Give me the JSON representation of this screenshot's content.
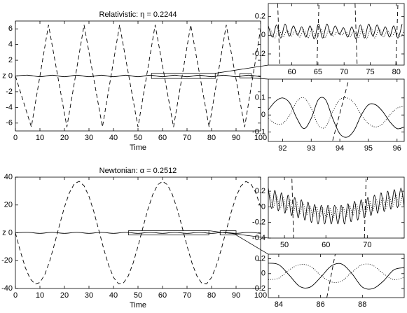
{
  "chart_data": [
    {
      "type": "line",
      "title": "Relativistic: η = 0.2244",
      "xlabel": "Time",
      "ylabel": "z",
      "xlim": [
        0,
        100
      ],
      "ylim": [
        -7,
        7
      ],
      "xticks": [
        0,
        10,
        20,
        30,
        40,
        50,
        60,
        70,
        80,
        90,
        100
      ],
      "yticks": [
        -6,
        -4,
        -2,
        0,
        2,
        4,
        6
      ],
      "series": [
        {
          "style": "dashed",
          "color": "#000000",
          "x": [
            0,
            6.5,
            13.5,
            21,
            28,
            35.5,
            42.5,
            50,
            57,
            64.5,
            71.5,
            79,
            86,
            93.5,
            100
          ],
          "values": [
            0,
            -6.5,
            6.5,
            -6.5,
            6.5,
            -6.5,
            6.5,
            -6.5,
            6.5,
            -6.5,
            6.5,
            -6.5,
            6.5,
            -6.5,
            6
          ]
        },
        {
          "style": "solid",
          "color": "#000000",
          "x": [
            0,
            5,
            10,
            15,
            20,
            25,
            30,
            35,
            40,
            45,
            50,
            55,
            60,
            65,
            70,
            75,
            80,
            85,
            90,
            95,
            100
          ],
          "values": [
            0,
            0.1,
            -0.1,
            0.1,
            -0.1,
            0.1,
            -0.1,
            0.1,
            -0.1,
            0.1,
            -0.1,
            0.1,
            -0.1,
            0.1,
            -0.1,
            0.1,
            -0.1,
            0.1,
            -0.1,
            0.1,
            -0.1
          ]
        }
      ]
    },
    {
      "type": "line",
      "xlim": [
        55.5,
        81.5
      ],
      "ylim": [
        -0.32,
        0.34
      ],
      "xticks": [
        60,
        65,
        70,
        75,
        80
      ],
      "yticks": [
        -0.2,
        0,
        0.2
      ],
      "series": [
        {
          "style": "solid",
          "color": "#000000",
          "x": [
            55.5,
            56.3,
            57.1,
            57.9,
            58.7,
            59.5,
            60.3,
            61.1,
            61.9,
            62.7,
            63.5,
            64.3,
            65.1,
            65.9,
            66.7,
            67.5,
            68.3,
            69.1,
            69.9,
            70.7,
            71.5,
            72.3,
            73.1,
            73.9,
            74.7,
            75.5,
            76.3,
            77.1,
            77.9,
            78.7,
            79.5,
            80.3,
            81.1
          ],
          "values": [
            0.1,
            -0.02,
            0.11,
            -0.03,
            0.12,
            -0.01,
            0.1,
            0,
            0.09,
            -0.02,
            0.1,
            -0.04,
            0.12,
            -0.03,
            0.12,
            0,
            0.1,
            0.01,
            0.08,
            -0.02,
            0.09,
            -0.04,
            0.11,
            -0.03,
            0.12,
            -0.01,
            0.11,
            0,
            0.09,
            -0.02,
            0.1,
            -0.03,
            0.12
          ]
        },
        {
          "style": "dotted",
          "color": "#000000",
          "x": [
            55.9,
            56.7,
            57.5,
            58.3,
            59.1,
            59.9,
            60.7,
            61.5,
            62.3,
            63.1,
            63.9,
            64.7,
            65.5,
            66.3,
            67.1,
            67.9,
            68.7,
            69.5,
            70.3,
            71.1,
            71.9,
            72.7,
            73.5,
            74.3,
            75.1,
            75.9,
            76.7,
            77.5,
            78.3,
            79.1,
            79.9,
            80.7,
            81.5
          ],
          "values": [
            0.07,
            -0.03,
            0.06,
            -0.02,
            0.05,
            -0.01,
            0.05,
            -0.02,
            0.06,
            -0.03,
            0.07,
            -0.04,
            0.07,
            -0.03,
            0.06,
            -0.01,
            0.04,
            0,
            0.04,
            -0.02,
            0.05,
            -0.03,
            0.07,
            -0.04,
            0.08,
            -0.03,
            0.07,
            -0.02,
            0.05,
            -0.01,
            0.04,
            -0.02,
            0.05
          ]
        },
        {
          "style": "dashed",
          "color": "#000000",
          "x": [
            57.3,
            57.7,
            null,
            64.8,
            65.2,
            null,
            72.1,
            72.5,
            null,
            79.9,
            80.3
          ],
          "values": [
            0.34,
            -0.32,
            null,
            -0.32,
            0.34,
            null,
            0.34,
            -0.32,
            null,
            -0.32,
            0.34
          ]
        }
      ]
    },
    {
      "type": "line",
      "xlim": [
        91.5,
        96.25
      ],
      "ylim": [
        -0.155,
        0.21
      ],
      "xticks": [
        92,
        93,
        94,
        95,
        96
      ],
      "yticks": [
        -0.1,
        0,
        0.1
      ],
      "series": [
        {
          "style": "solid",
          "color": "#000000",
          "x": [
            91.5,
            91.75,
            92,
            92.25,
            92.5,
            92.75,
            93,
            93.25,
            93.5,
            93.75,
            94,
            94.25,
            94.5,
            94.75,
            95,
            95.25,
            95.5,
            95.75,
            96,
            96.25
          ],
          "values": [
            0.03,
            0.08,
            0.1,
            0.07,
            -0.02,
            -0.08,
            -0.02,
            0.09,
            0.09,
            -0.02,
            -0.11,
            -0.13,
            -0.09,
            0,
            0.06,
            0.06,
            0.02,
            -0.04,
            -0.08,
            -0.07
          ]
        },
        {
          "style": "dotted",
          "color": "#000000",
          "x": [
            91.5,
            91.75,
            92,
            92.25,
            92.5,
            92.75,
            93,
            93.25,
            93.5,
            93.75,
            94,
            94.25,
            94.5,
            94.75,
            95,
            95.25,
            95.5,
            95.75,
            96,
            96.25
          ],
          "values": [
            -0.02,
            -0.05,
            -0.05,
            0,
            0.08,
            0.1,
            0.04,
            -0.06,
            -0.07,
            0.02,
            0.09,
            0.1,
            0.07,
            0,
            -0.05,
            -0.07,
            -0.05,
            0,
            0.04,
            0.05
          ]
        },
        {
          "style": "dashed",
          "color": "#000000",
          "x": [
            93.75,
            94.3
          ],
          "values": [
            -0.15,
            0.2
          ]
        }
      ]
    },
    {
      "type": "line",
      "title": "Newtonian: α = 0.2512",
      "xlabel": "Time",
      "ylabel": "z",
      "xlim": [
        0,
        100
      ],
      "ylim": [
        -40,
        40
      ],
      "xticks": [
        0,
        10,
        20,
        30,
        40,
        50,
        60,
        70,
        80,
        90,
        100
      ],
      "yticks": [
        -40,
        -20,
        0,
        20,
        40
      ],
      "series": [
        {
          "style": "dashed",
          "color": "#000000",
          "x": [
            0,
            2,
            4,
            6,
            8,
            10,
            12,
            14,
            16,
            18,
            20,
            22,
            24,
            26,
            28,
            30,
            32,
            34,
            36,
            38,
            40,
            42,
            44,
            46,
            48,
            50,
            52,
            54,
            56,
            58,
            60,
            62,
            64,
            66,
            68,
            70,
            72,
            74,
            76,
            78,
            80,
            82,
            84,
            86,
            88,
            90,
            92,
            94,
            96,
            98,
            100
          ],
          "values": [
            0,
            -13.2,
            -24.8,
            -33.0,
            -36.8,
            -35.7,
            -29.9,
            -20.2,
            -7.7,
            5.7,
            18.5,
            28.7,
            35.2,
            37.0,
            33.8,
            26.2,
            15.1,
            2.0,
            -11.4,
            -23.2,
            -32.0,
            -36.5,
            -36.2,
            -31.1,
            -21.9,
            -9.7,
            3.7,
            16.7,
            27.4,
            34.5,
            37.0,
            34.6,
            27.6,
            17.0,
            4.1,
            -9.4,
            -21.6,
            -30.9,
            -36.2,
            -36.6,
            -32.1,
            -23.4,
            -11.6,
            1.7,
            14.8,
            26.0,
            33.7,
            36.9,
            35.3,
            28.9,
            18.7
          ]
        },
        {
          "style": "solid",
          "color": "#000000",
          "x": [
            0,
            5,
            10,
            15,
            20,
            25,
            30,
            35,
            40,
            45,
            50,
            55,
            60,
            65,
            70,
            75,
            80,
            85,
            90,
            95,
            100
          ],
          "values": [
            0,
            0.4,
            -0.4,
            0.4,
            -0.4,
            0.4,
            -0.4,
            0.4,
            -0.4,
            0.4,
            -0.4,
            0.4,
            -0.4,
            0.4,
            -0.4,
            0.4,
            -0.4,
            0.4,
            -0.4,
            0.4,
            -0.4
          ]
        }
      ]
    },
    {
      "type": "line",
      "xlim": [
        46.1,
        78.9
      ],
      "ylim": [
        -0.4,
        0.38
      ],
      "xticks": [
        50,
        60,
        70
      ],
      "yticks": [
        -0.4,
        -0.2,
        0,
        0.2
      ],
      "series": [
        {
          "style": "solid",
          "color": "#000000",
          "x": [
            46.1,
            46.9,
            47.7,
            48.5,
            49.3,
            50.1,
            50.9,
            51.7,
            52.5,
            53.3,
            54.1,
            54.9,
            55.7,
            56.5,
            57.3,
            58.1,
            58.9,
            59.7,
            60.5,
            61.3,
            62.1,
            62.9,
            63.7,
            64.5,
            65.3,
            66.1,
            66.9,
            67.7,
            68.5,
            69.3,
            70.1,
            70.9,
            71.7,
            72.5,
            73.3,
            74.1,
            74.9,
            75.7,
            76.5,
            77.3,
            78.1,
            78.9
          ],
          "values": [
            0.24,
            -0.02,
            0.21,
            -0.05,
            0.18,
            -0.08,
            0.15,
            -0.11,
            0.12,
            -0.14,
            0.09,
            -0.17,
            0.06,
            -0.2,
            0.03,
            -0.22,
            0.02,
            -0.22,
            0.02,
            -0.22,
            0.02,
            -0.22,
            0.02,
            -0.22,
            0.04,
            -0.19,
            0.07,
            -0.17,
            0.09,
            -0.14,
            0.12,
            -0.11,
            0.15,
            -0.08,
            0.18,
            -0.06,
            0.2,
            -0.03,
            0.22,
            -0.01,
            0.24,
            0
          ]
        },
        {
          "style": "dotted",
          "color": "#000000",
          "x": [
            46.5,
            47.3,
            48.1,
            48.9,
            49.7,
            50.5,
            51.3,
            52.1,
            52.9,
            53.7,
            54.5,
            55.3,
            56.1,
            56.9,
            57.7,
            58.5,
            59.3,
            60.1,
            60.9,
            61.7,
            62.5,
            63.3,
            64.1,
            64.9,
            65.7,
            66.5,
            67.3,
            68.1,
            68.9,
            69.7,
            70.5,
            71.3,
            72.1,
            72.9,
            73.7,
            74.5,
            75.3,
            76.1,
            76.9,
            77.7,
            78.5
          ],
          "values": [
            0.17,
            -0.01,
            0.15,
            -0.03,
            0.12,
            -0.05,
            0.1,
            -0.07,
            0.07,
            -0.09,
            0.05,
            -0.11,
            0.02,
            -0.13,
            0,
            -0.14,
            -0.01,
            -0.14,
            -0.01,
            -0.14,
            -0.01,
            -0.14,
            0,
            -0.13,
            0.02,
            -0.11,
            0.04,
            -0.09,
            0.06,
            -0.07,
            0.08,
            -0.05,
            0.1,
            -0.03,
            0.12,
            -0.02,
            0.14,
            0,
            0.15,
            0.01,
            0.16
          ]
        },
        {
          "style": "dashed",
          "color": "#000000",
          "x": [
            51.8,
            52.2,
            null,
            69.3,
            69.7
          ],
          "values": [
            0.36,
            -0.4,
            null,
            -0.4,
            0.36
          ]
        }
      ]
    },
    {
      "type": "line",
      "xlim": [
        83.5,
        90
      ],
      "ylim": [
        -0.32,
        0.26
      ],
      "xticks": [
        84,
        86,
        88
      ],
      "yticks": [
        -0.2,
        0,
        0.2
      ],
      "series": [
        {
          "style": "solid",
          "color": "#000000",
          "x": [
            83.5,
            84,
            84.5,
            85,
            85.5,
            86,
            86.5,
            87,
            87.5,
            88,
            88.5,
            89,
            89.5,
            90
          ],
          "values": [
            0.14,
            0.12,
            -0.02,
            -0.17,
            -0.18,
            -0.05,
            0.1,
            0.13,
            0,
            -0.18,
            -0.2,
            -0.1,
            0.05,
            0.08
          ]
        },
        {
          "style": "dotted",
          "color": "#000000",
          "x": [
            83.5,
            84,
            84.5,
            85,
            85.5,
            86,
            86.5,
            87,
            87.5,
            88,
            88.5,
            89,
            89.5,
            90
          ],
          "values": [
            -0.08,
            -0.06,
            0.05,
            0.12,
            0.1,
            -0.02,
            -0.11,
            -0.1,
            0.02,
            0.12,
            0.11,
            0,
            -0.08,
            -0.05
          ]
        },
        {
          "style": "dashed",
          "color": "#000000",
          "x": [
            86.3,
            86.7
          ],
          "values": [
            -0.32,
            0.26
          ]
        }
      ]
    }
  ]
}
